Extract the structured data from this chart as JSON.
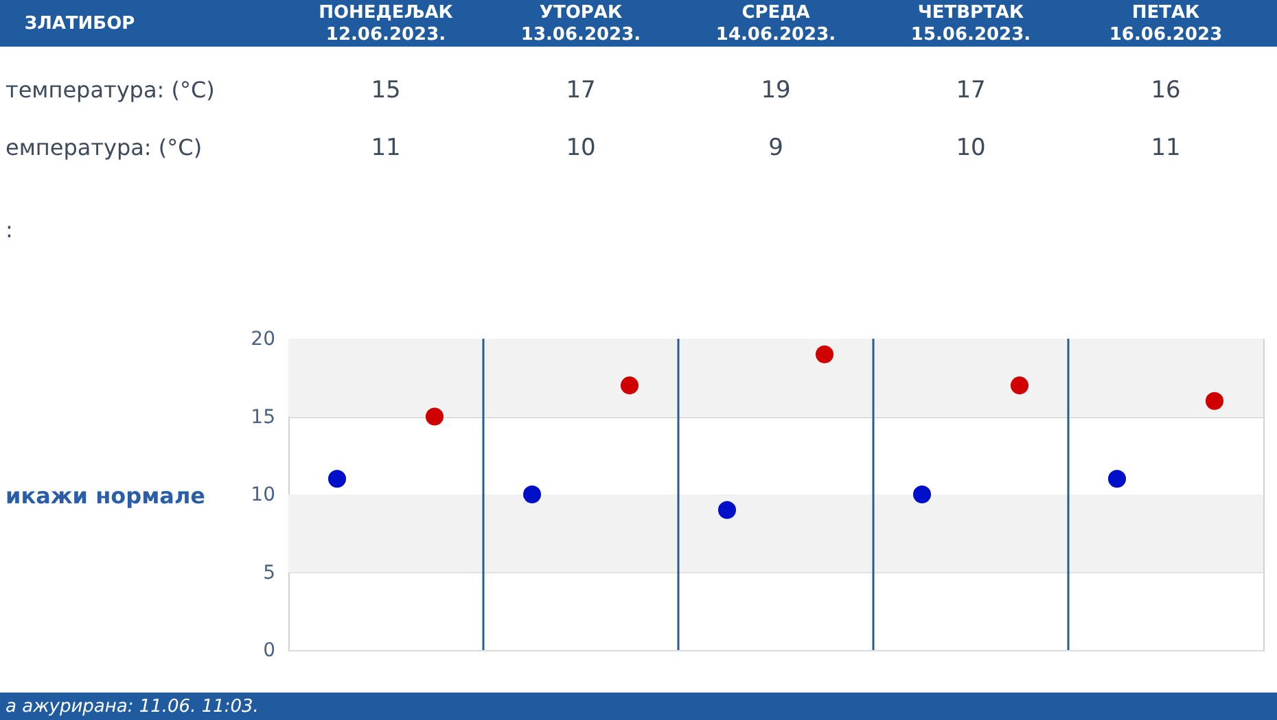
{
  "chart_data": {
    "type": "scatter",
    "title": "ЗЛАТИБОР",
    "categories": [
      null,
      null,
      null,
      null,
      null
    ],
    "series": [
      {
        "color": "#d00000",
        "values": [
          15,
          17,
          19,
          17,
          16
        ]
      },
      {
        "color": "#0010c8",
        "values": [
          11,
          10,
          9,
          10,
          11
        ]
      }
    ],
    "ylim": [
      0,
      20
    ],
    "yticks": [
      0,
      5,
      10,
      15,
      20
    ],
    "grid": true,
    "marker": "circle",
    "data_labels": true,
    "bands": [
      {
        "axis": "y",
        "from": 15,
        "to": 20,
        "color": "#f2f2f2"
      },
      {
        "axis": "y",
        "from": 5,
        "to": 10,
        "color": "#f2f2f2"
      }
    ],
    "annotations": [
      "ПОНЕДЕЉАК\n12.06.2023.",
      "УТОРАК\n13.06.2023.",
      "СРЕДА\n14.06.2023.",
      "ЧЕТВРТАК\n15.06.2023.",
      "ПЕТАК\n16.06.2023",
      "температура: (°C)",
      "емпература: (°C)",
      ":",
      "икажи нормале",
      "а ажурирана: 11.06. 11:03."
    ]
  }
}
